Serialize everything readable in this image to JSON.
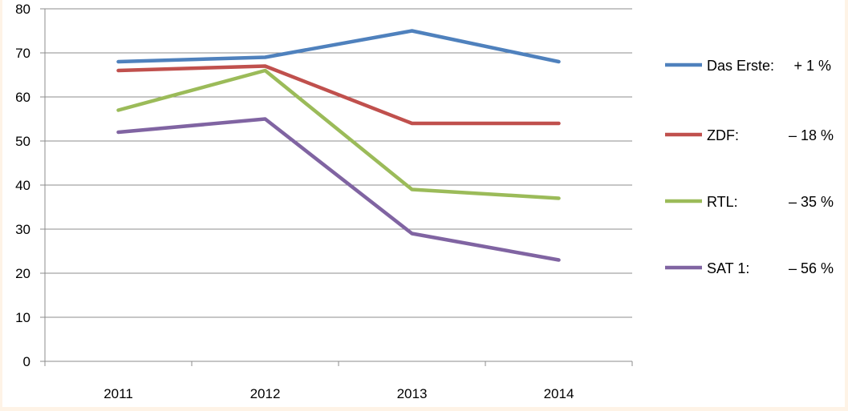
{
  "chart_data": {
    "type": "line",
    "title": "",
    "xlabel": "",
    "ylabel": "",
    "categories": [
      "2011",
      "2012",
      "2013",
      "2014"
    ],
    "ylim": [
      0,
      80
    ],
    "yticks": [
      "0",
      "10",
      "20",
      "30",
      "40",
      "50",
      "60",
      "70",
      "80"
    ],
    "grid": true,
    "legend_placement": "right",
    "series": [
      {
        "name": "Das Erste:",
        "change": "+ 1 %",
        "color": "#4f81bd",
        "values": [
          68,
          69,
          75,
          68
        ]
      },
      {
        "name": "ZDF:",
        "change": "– 18 %",
        "color": "#c0504d",
        "values": [
          66,
          67,
          54,
          54
        ]
      },
      {
        "name": "RTL:",
        "change": "– 35 %",
        "color": "#9bbb59",
        "values": [
          57,
          66,
          39,
          37
        ]
      },
      {
        "name": "SAT 1:",
        "change": "– 56 %",
        "color": "#8064a2",
        "values": [
          52,
          55,
          29,
          23
        ]
      }
    ]
  }
}
